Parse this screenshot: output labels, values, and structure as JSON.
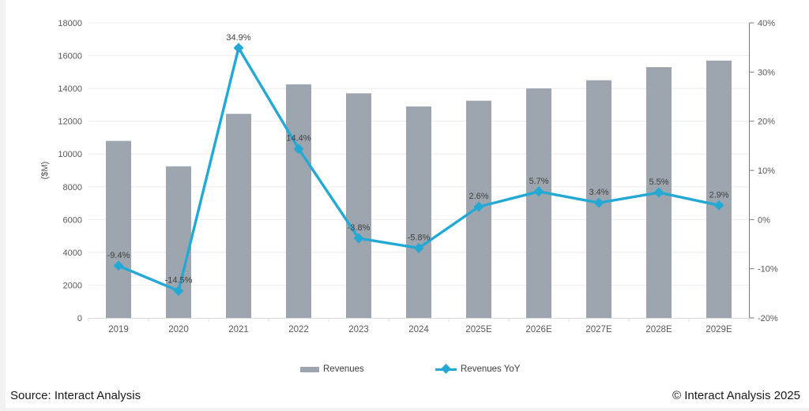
{
  "chart_data": {
    "type": "combo-bar-line",
    "categories": [
      "2019",
      "2020",
      "2021",
      "2022",
      "2023",
      "2024",
      "2025E",
      "2026E",
      "2027E",
      "2028E",
      "2029E"
    ],
    "series": [
      {
        "name": "Revenues",
        "type": "bar",
        "axis": "left",
        "values": [
          10800,
          9250,
          12450,
          14250,
          13700,
          12900,
          13250,
          14000,
          14500,
          15300,
          15700
        ]
      },
      {
        "name": "Revenues YoY",
        "type": "line",
        "axis": "right",
        "values": [
          -9.4,
          -14.5,
          34.9,
          14.4,
          -3.8,
          -5.8,
          2.6,
          5.7,
          3.4,
          5.5,
          2.9
        ],
        "labels": [
          "-9.4%",
          "-14.5%",
          "34.9%",
          "14.4%",
          "-3.8%",
          "-5.8%",
          "2.6%",
          "5.7%",
          "3.4%",
          "5.5%",
          "2.9%"
        ]
      }
    ],
    "left_axis": {
      "label": "($M)",
      "min": 0,
      "max": 18000,
      "step": 2000,
      "ticks": [
        "0",
        "2000",
        "4000",
        "6000",
        "8000",
        "10000",
        "12000",
        "14000",
        "16000",
        "18000"
      ]
    },
    "right_axis": {
      "min": -20,
      "max": 40,
      "step": 10,
      "ticks": [
        "-20%",
        "-10%",
        "0%",
        "10%",
        "20%",
        "30%",
        "40%"
      ]
    },
    "grid": "horizontal",
    "legend_position": "bottom"
  },
  "footer": {
    "source": "Source: Interact Analysis",
    "copyright": "© Interact Analysis 2025"
  },
  "colors": {
    "bar": "#9DA6AE",
    "line": "#24A8D4",
    "gridline": "#ECECEC",
    "baseline": "#D9D9D9",
    "right_axis_line": "#7A7A7A",
    "tick_label": "#595959",
    "data_label": "#3F3F3F"
  }
}
